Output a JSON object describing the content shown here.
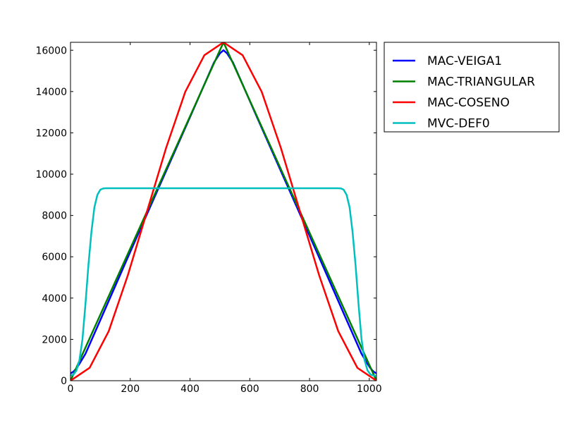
{
  "chart_data": {
    "type": "line",
    "title": "",
    "xlabel": "",
    "ylabel": "",
    "xlim": [
      0,
      1024
    ],
    "ylim": [
      0,
      16384
    ],
    "xticks": [
      0,
      200,
      400,
      600,
      800,
      1000
    ],
    "yticks": [
      0,
      2000,
      4000,
      6000,
      8000,
      10000,
      12000,
      14000,
      16000
    ],
    "grid": false,
    "legend_placement": "outside upper right",
    "series": [
      {
        "name": "MAC-VEIGA1",
        "color": "#0000ff",
        "x": [
          0,
          10,
          20,
          30,
          50,
          100,
          200,
          300,
          400,
          480,
          500,
          512,
          524,
          544,
          624,
          724,
          824,
          924,
          974,
          994,
          1004,
          1014,
          1024
        ],
        "y": [
          350,
          440,
          600,
          820,
          1300,
          2940,
          6240,
          9500,
          12760,
          15400,
          15850,
          16000,
          15850,
          15400,
          12760,
          9500,
          6240,
          2940,
          1300,
          820,
          600,
          440,
          350
        ]
      },
      {
        "name": "MAC-TRIANGULAR",
        "color": "#008000",
        "x": [
          0,
          512,
          1024
        ],
        "y": [
          0,
          16384,
          0
        ]
      },
      {
        "name": "MAC-COSENO",
        "color": "#ff0000",
        "x": [
          0,
          64,
          128,
          192,
          256,
          320,
          384,
          448,
          512,
          576,
          640,
          704,
          768,
          832,
          896,
          960,
          1024
        ],
        "y": [
          0,
          624,
          2400,
          5112,
          8192,
          11272,
          13984,
          15760,
          16384,
          15760,
          13984,
          11272,
          8192,
          5112,
          2400,
          624,
          0
        ]
      },
      {
        "name": "MVC-DEF0",
        "color": "#00bfbf",
        "x": [
          0,
          10,
          20,
          30,
          40,
          50,
          60,
          70,
          80,
          90,
          100,
          110,
          120,
          130,
          200,
          300,
          400,
          500,
          600,
          700,
          800,
          894,
          905,
          914,
          924,
          934,
          944,
          954,
          964,
          974,
          984,
          994,
          1004,
          1014,
          1024
        ],
        "y": [
          250,
          300,
          500,
          1000,
          2000,
          3700,
          5600,
          7200,
          8400,
          9000,
          9250,
          9310,
          9320,
          9320,
          9320,
          9320,
          9320,
          9320,
          9320,
          9320,
          9320,
          9320,
          9310,
          9250,
          9000,
          8400,
          7200,
          5600,
          3700,
          2000,
          1000,
          500,
          300,
          250,
          230
        ]
      }
    ]
  }
}
